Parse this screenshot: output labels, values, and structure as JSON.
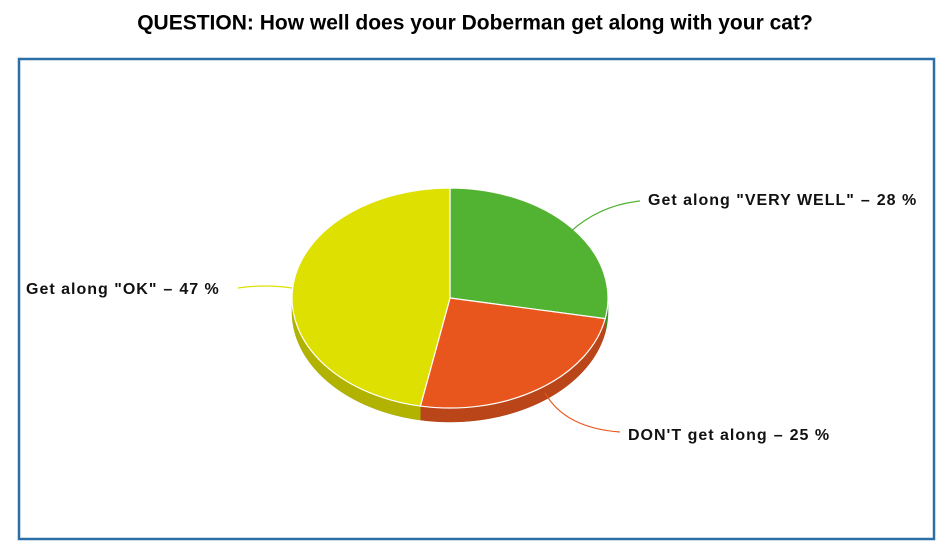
{
  "chart_data": {
    "type": "pie",
    "title": "QUESTION: How well does your Doberman get along with your cat?",
    "categories": [
      "Get along \"VERY WELL\"",
      "DON'T get along",
      "Get along \"OK\""
    ],
    "values": [
      28,
      25,
      47
    ],
    "value_labels": [
      "28 %",
      "25 %",
      "47 %"
    ],
    "label_separator": "–",
    "colors": [
      "#52b332",
      "#e8561e",
      "#dde000"
    ]
  }
}
